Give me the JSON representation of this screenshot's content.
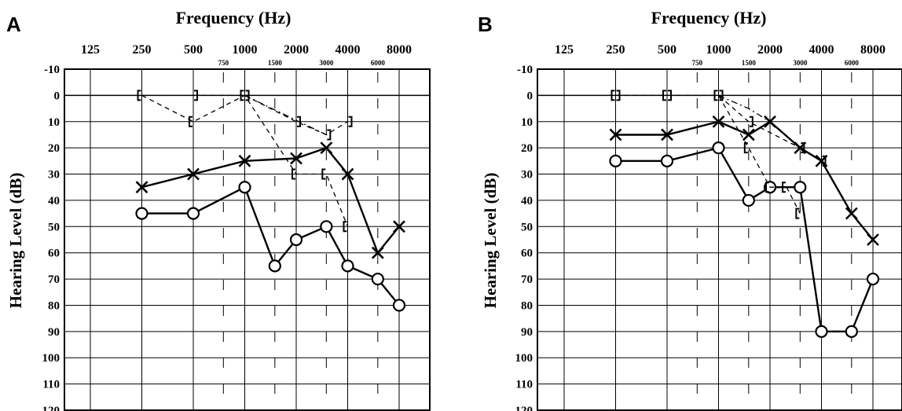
{
  "figure": {
    "panels": [
      {
        "id": "A",
        "label": "A",
        "title": "Frequency (Hz)",
        "ylabel": "Hearing Level (dB)"
      },
      {
        "id": "B",
        "label": "B",
        "title": "Frequency (Hz)",
        "ylabel": "Hearing Level (dB)"
      }
    ]
  },
  "chart_data": [
    {
      "type": "line",
      "panel": "A",
      "title": "Frequency (Hz)",
      "xlabel": "",
      "ylabel": "Hearing Level (dB)",
      "x_scale": "log2",
      "x_ticks_major": [
        "125",
        "250",
        "500",
        "1000",
        "2000",
        "4000",
        "8000"
      ],
      "x_ticks_minor": [
        "750",
        "1500",
        "3000",
        "6000"
      ],
      "y_ticks": [
        "-10",
        "0",
        "10",
        "20",
        "30",
        "40",
        "50",
        "60",
        "70",
        "80",
        "90",
        "100",
        "110",
        "120"
      ],
      "ylim": [
        -10,
        120
      ],
      "y_inverted": true,
      "grid": true,
      "series": [
        {
          "marker": "X",
          "style": "solid",
          "color": "#000000",
          "x": [
            250,
            500,
            1000,
            2000,
            3000,
            4000,
            6000,
            8000
          ],
          "values": [
            35,
            30,
            25,
            24,
            20,
            30,
            60,
            50
          ]
        },
        {
          "marker": "O",
          "style": "solid",
          "color": "#000000",
          "x": [
            250,
            500,
            1000,
            1500,
            2000,
            3000,
            4000,
            6000,
            8000
          ],
          "values": [
            45,
            45,
            35,
            65,
            55,
            50,
            65,
            70,
            80
          ]
        },
        {
          "marker": "]",
          "style": "dashed",
          "color": "#000000",
          "x": [
            500,
            1000,
            2000,
            3000,
            4000
          ],
          "values": [
            0,
            0,
            10,
            15,
            10
          ]
        },
        {
          "marker": "[",
          "style": "dashed",
          "color": "#000000",
          "x": [
            250,
            500,
            1000,
            2000,
            3000,
            4000
          ],
          "values": [
            0,
            10,
            0,
            30,
            30,
            50
          ]
        },
        {
          "marker": "",
          "style": "dashdot",
          "color": "#000000",
          "x": [
            1000,
            3000
          ],
          "values": [
            0,
            15
          ]
        }
      ]
    },
    {
      "type": "line",
      "panel": "B",
      "title": "Frequency (Hz)",
      "xlabel": "",
      "ylabel": "Hearing Level (dB)",
      "x_scale": "log2",
      "x_ticks_major": [
        "125",
        "250",
        "500",
        "1000",
        "2000",
        "4000",
        "8000"
      ],
      "x_ticks_minor": [
        "750",
        "1500",
        "3000",
        "6000"
      ],
      "y_ticks": [
        "-10",
        "0",
        "10",
        "20",
        "30",
        "40",
        "50",
        "60",
        "70",
        "80",
        "90",
        "100",
        "110",
        "120"
      ],
      "ylim": [
        -10,
        120
      ],
      "y_inverted": true,
      "grid": true,
      "series": [
        {
          "marker": "X",
          "style": "solid",
          "color": "#000000",
          "x": [
            250,
            500,
            1000,
            1500,
            2000,
            3000,
            4000,
            6000,
            8000
          ],
          "values": [
            15,
            15,
            10,
            15,
            10,
            20,
            25,
            45,
            55
          ]
        },
        {
          "marker": "O",
          "style": "solid",
          "color": "#000000",
          "x": [
            250,
            500,
            1000,
            1500,
            2000,
            3000,
            4000,
            6000,
            8000
          ],
          "values": [
            25,
            25,
            20,
            40,
            35,
            35,
            90,
            90,
            70
          ]
        },
        {
          "marker": "]",
          "style": "dashed",
          "color": "#000000",
          "x": [
            250,
            500,
            1000,
            1500,
            3000,
            4000
          ],
          "values": [
            0,
            0,
            0,
            10,
            20,
            25
          ]
        },
        {
          "marker": "[",
          "style": "dashed",
          "color": "#000000",
          "x": [
            250,
            500,
            1000,
            1500,
            2000,
            2500,
            3000
          ],
          "values": [
            0,
            0,
            0,
            20,
            35,
            35,
            45
          ]
        },
        {
          "marker": "",
          "style": "dashdot",
          "color": "#000000",
          "x": [
            1000,
            1500,
            2000,
            3000
          ],
          "values": [
            0,
            5,
            10,
            20
          ]
        }
      ]
    }
  ]
}
